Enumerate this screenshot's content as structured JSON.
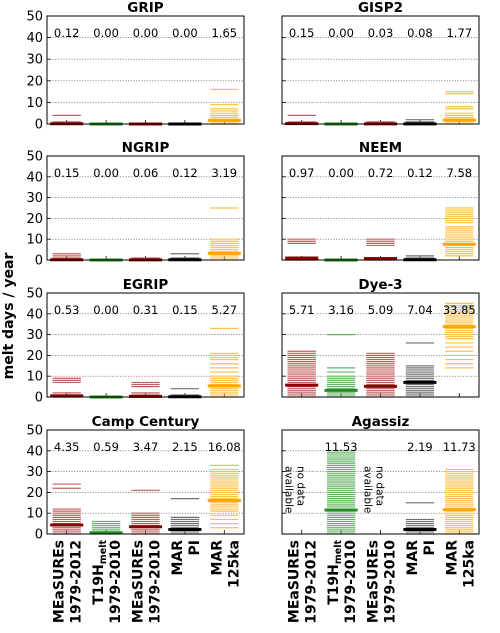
{
  "figure": {
    "ylabel": "melt days / year",
    "column_labels": [
      {
        "line1": "MEaSUREs",
        "line2": "1979-2012",
        "sub": ""
      },
      {
        "line1": "T19H",
        "line2": "1979-2010",
        "sub": "melt"
      },
      {
        "line1": "MEaSUREs",
        "line2": "1979-2010",
        "sub": ""
      },
      {
        "line1": "MAR",
        "line2": "PI",
        "sub": ""
      },
      {
        "line1": "MAR",
        "line2": "125ka",
        "sub": ""
      }
    ],
    "no_data_text": [
      "no data",
      "available"
    ]
  },
  "chart_data": [
    {
      "type": "bar",
      "title": "GRIP",
      "ylim": [
        0,
        50
      ],
      "yticks": [
        0,
        10,
        20,
        30,
        40,
        50
      ],
      "grid": "horizontal dotted",
      "categories": [
        "MEaSUREs 1979-2012",
        "T19H melt 1979-2010",
        "MEaSUREs 1979-2010",
        "MAR PI",
        "MAR 125ka"
      ],
      "mean_labels": [
        "0.12",
        "0.00",
        "0.00",
        "0.00",
        "1.65"
      ],
      "means": [
        0.12,
        0.0,
        0.0,
        0.0,
        1.65
      ],
      "annual_values": [
        [
          0,
          0,
          0,
          0,
          1,
          4
        ],
        [
          0
        ],
        [
          0
        ],
        [
          0
        ],
        [
          0,
          0,
          1,
          1,
          2,
          2,
          3,
          3,
          4,
          5,
          6,
          7,
          9,
          16
        ]
      ]
    },
    {
      "type": "bar",
      "title": "GISP2",
      "ylim": [
        0,
        50
      ],
      "yticks": [
        0,
        10,
        20,
        30,
        40,
        50
      ],
      "grid": "horizontal dotted",
      "categories": [
        "MEaSUREs 1979-2012",
        "T19H melt 1979-2010",
        "MEaSUREs 1979-2010",
        "MAR PI",
        "MAR 125ka"
      ],
      "mean_labels": [
        "0.15",
        "0.00",
        "0.03",
        "0.08",
        "1.77"
      ],
      "means": [
        0.15,
        0.0,
        0.03,
        0.08,
        1.77
      ],
      "annual_values": [
        [
          0,
          0,
          0,
          1,
          4
        ],
        [
          0
        ],
        [
          0,
          1
        ],
        [
          0,
          1,
          2
        ],
        [
          0,
          1,
          1,
          2,
          2,
          3,
          3,
          4,
          5,
          7,
          8,
          14,
          15
        ]
      ]
    },
    {
      "type": "bar",
      "title": "NGRIP",
      "ylim": [
        0,
        50
      ],
      "yticks": [
        0,
        10,
        20,
        30,
        40,
        50
      ],
      "grid": "horizontal dotted",
      "categories": [
        "MEaSUREs 1979-2012",
        "T19H melt 1979-2010",
        "MEaSUREs 1979-2010",
        "MAR PI",
        "MAR 125ka"
      ],
      "mean_labels": [
        "0.15",
        "0.00",
        "0.06",
        "0.12",
        "3.19"
      ],
      "means": [
        0.15,
        0.0,
        0.06,
        0.12,
        3.19
      ],
      "annual_values": [
        [
          0,
          0,
          1,
          2,
          3
        ],
        [
          0
        ],
        [
          0,
          1
        ],
        [
          0,
          1,
          3
        ],
        [
          0,
          1,
          2,
          3,
          3,
          4,
          5,
          6,
          7,
          8,
          9,
          10,
          25
        ]
      ]
    },
    {
      "type": "bar",
      "title": "NEEM",
      "ylim": [
        0,
        50
      ],
      "yticks": [
        0,
        10,
        20,
        30,
        40,
        50
      ],
      "grid": "horizontal dotted",
      "categories": [
        "MEaSUREs 1979-2012",
        "T19H melt 1979-2010",
        "MEaSUREs 1979-2010",
        "MAR PI",
        "MAR 125ka"
      ],
      "mean_labels": [
        "0.97",
        "0.00",
        "0.72",
        "0.12",
        "7.58"
      ],
      "means": [
        0.97,
        0.0,
        0.72,
        0.12,
        7.58
      ],
      "annual_values": [
        [
          0,
          0,
          1,
          1,
          8,
          9,
          10
        ],
        [
          0
        ],
        [
          0,
          0,
          1,
          1,
          7,
          8,
          9,
          10
        ],
        [
          0,
          1,
          2
        ],
        [
          2,
          3,
          4,
          5,
          6,
          7,
          8,
          9,
          10,
          11,
          12,
          13,
          14,
          15,
          16,
          18,
          19,
          20,
          21,
          22,
          23,
          24,
          25
        ]
      ]
    },
    {
      "type": "bar",
      "title": "EGRIP",
      "ylim": [
        0,
        50
      ],
      "yticks": [
        0,
        10,
        20,
        30,
        40,
        50
      ],
      "grid": "horizontal dotted",
      "categories": [
        "MEaSUREs 1979-2012",
        "T19H melt 1979-2010",
        "MEaSUREs 1979-2010",
        "MAR PI",
        "MAR 125ka"
      ],
      "mean_labels": [
        "0.53",
        "0.00",
        "0.31",
        "0.15",
        "5.27"
      ],
      "means": [
        0.53,
        0.0,
        0.31,
        0.15,
        5.27
      ],
      "annual_values": [
        [
          0,
          0,
          1,
          2,
          7,
          8,
          9
        ],
        [
          0
        ],
        [
          0,
          1,
          2,
          5,
          6,
          7
        ],
        [
          0,
          1,
          4
        ],
        [
          0,
          1,
          2,
          3,
          4,
          5,
          6,
          7,
          8,
          9,
          10,
          12,
          14,
          16,
          18,
          19,
          20,
          21,
          33
        ]
      ]
    },
    {
      "type": "bar",
      "title": "Dye-3",
      "ylim": [
        0,
        50
      ],
      "yticks": [
        0,
        10,
        20,
        30,
        40,
        50
      ],
      "grid": "horizontal dotted",
      "categories": [
        "MEaSUREs 1979-2012",
        "T19H melt 1979-2010",
        "MEaSUREs 1979-2010",
        "MAR PI",
        "MAR 125ka"
      ],
      "mean_labels": [
        "5.71",
        "3.16",
        "5.09",
        "7.04",
        "33.85"
      ],
      "means": [
        5.71,
        3.16,
        5.09,
        7.04,
        33.85
      ],
      "annual_values": [
        [
          0,
          1,
          2,
          3,
          4,
          5,
          6,
          7,
          8,
          9,
          10,
          11,
          12,
          13,
          14,
          15,
          16,
          17,
          18,
          19,
          20,
          21,
          22
        ],
        [
          0,
          1,
          2,
          3,
          4,
          5,
          6,
          7,
          8,
          9,
          10,
          12,
          14,
          30
        ],
        [
          0,
          1,
          2,
          3,
          4,
          5,
          6,
          7,
          8,
          9,
          10,
          11,
          12,
          13,
          14,
          15,
          16,
          17,
          18,
          19,
          20,
          21
        ],
        [
          0,
          1,
          2,
          3,
          4,
          5,
          6,
          7,
          8,
          9,
          10,
          11,
          12,
          13,
          14,
          15,
          26
        ],
        [
          14,
          16,
          18,
          20,
          22,
          24,
          26,
          28,
          29,
          30,
          31,
          32,
          33,
          34,
          35,
          36,
          37,
          38,
          39,
          40,
          41,
          42,
          43,
          44,
          45
        ]
      ]
    },
    {
      "type": "bar",
      "title": "Camp Century",
      "ylim": [
        0,
        50
      ],
      "yticks": [
        0,
        10,
        20,
        30,
        40,
        50
      ],
      "grid": "horizontal dotted",
      "categories": [
        "MEaSUREs 1979-2012",
        "T19H melt 1979-2010",
        "MEaSUREs 1979-2010",
        "MAR PI",
        "MAR 125ka"
      ],
      "mean_labels": [
        "4.35",
        "0.59",
        "3.47",
        "2.15",
        "16.08"
      ],
      "means": [
        4.35,
        0.59,
        3.47,
        2.15,
        16.08
      ],
      "annual_values": [
        [
          0,
          1,
          2,
          3,
          4,
          5,
          6,
          7,
          8,
          9,
          10,
          11,
          12,
          22,
          24
        ],
        [
          0,
          1,
          2,
          3,
          4,
          5,
          6
        ],
        [
          0,
          1,
          2,
          3,
          4,
          5,
          6,
          7,
          8,
          9,
          10,
          21
        ],
        [
          0,
          1,
          2,
          3,
          4,
          5,
          6,
          7,
          8,
          17
        ],
        [
          3,
          5,
          7,
          9,
          11,
          12,
          13,
          14,
          15,
          16,
          17,
          18,
          19,
          20,
          21,
          22,
          23,
          24,
          25,
          26,
          27,
          28,
          29,
          30,
          31,
          33
        ]
      ]
    },
    {
      "type": "bar",
      "title": "Agassiz",
      "ylim": [
        0,
        50
      ],
      "yticks": [
        0,
        10,
        20,
        30,
        40,
        50
      ],
      "grid": "horizontal dotted",
      "categories": [
        "MEaSUREs 1979-2012",
        "T19H melt 1979-2010",
        "MEaSUREs 1979-2010",
        "MAR PI",
        "MAR 125ka"
      ],
      "mean_labels": [
        "",
        "11.53",
        "",
        "2.19",
        "11.73"
      ],
      "means": [
        null,
        11.53,
        null,
        2.19,
        11.73
      ],
      "no_data": [
        true,
        false,
        true,
        false,
        false
      ],
      "annual_values": [
        [],
        [
          0,
          1,
          2,
          3,
          4,
          5,
          6,
          7,
          8,
          9,
          10,
          11,
          12,
          13,
          14,
          15,
          16,
          17,
          18,
          19,
          20,
          21,
          22,
          23,
          24,
          25,
          26,
          27,
          28,
          29,
          30,
          31,
          32,
          33,
          34,
          35,
          36,
          37,
          38,
          39,
          40
        ],
        [],
        [
          0,
          1,
          2,
          3,
          4,
          5,
          6,
          7,
          15
        ],
        [
          0,
          1,
          2,
          3,
          4,
          5,
          6,
          7,
          8,
          9,
          10,
          11,
          12,
          13,
          14,
          15,
          16,
          17,
          18,
          19,
          20,
          21,
          22,
          23,
          24,
          25,
          26,
          27,
          28,
          29,
          30,
          31
        ]
      ]
    }
  ],
  "colors": {
    "series": [
      "#8b0000",
      "#228b22",
      "#8b0000",
      "#000000",
      "#ffa500"
    ],
    "series_light": [
      "#c06060",
      "#66b366",
      "#c06060",
      "#707070",
      "#ffc04d"
    ],
    "grid": "#555555",
    "axis": "#000000"
  }
}
